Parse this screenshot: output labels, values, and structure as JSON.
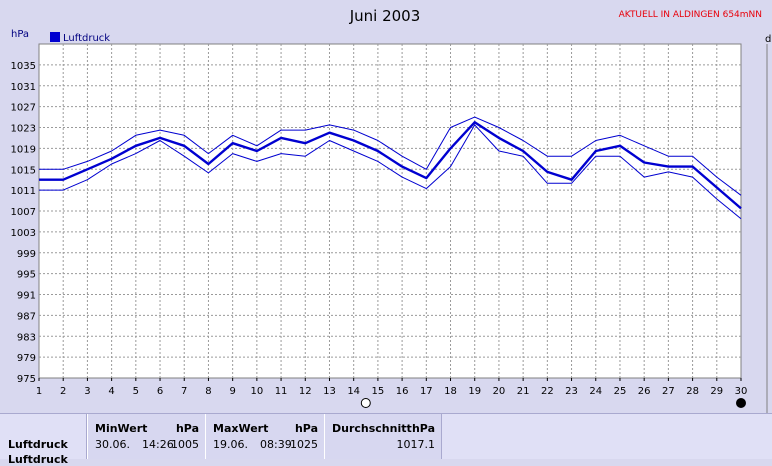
{
  "title": "Juni 2003",
  "notice": "AKTUELL IN ALDINGEN 654mNN",
  "corner_letter": "d",
  "chart_data": {
    "type": "line",
    "title": "Juni 2003",
    "ylabel": "hPa",
    "xlabel": "",
    "ylim": [
      975,
      1039
    ],
    "xlim": [
      1,
      30
    ],
    "yticks": [
      975,
      979,
      983,
      987,
      991,
      995,
      999,
      1003,
      1007,
      1011,
      1015,
      1019,
      1023,
      1027,
      1031,
      1035
    ],
    "x": [
      1,
      2,
      3,
      4,
      5,
      6,
      7,
      8,
      9,
      10,
      11,
      12,
      13,
      14,
      15,
      16,
      17,
      18,
      19,
      20,
      21,
      22,
      23,
      24,
      25,
      26,
      27,
      28,
      29,
      30
    ],
    "grid": true,
    "legend_position": "top-left",
    "series": [
      {
        "name": "Luftdruck",
        "role": "mean",
        "color": "#0000d0",
        "values": [
          1013,
          1013,
          1015,
          1017,
          1019.5,
          1021,
          1019.5,
          1016,
          1020,
          1018.5,
          1021,
          1020,
          1022,
          1020.5,
          1018.5,
          1015.5,
          1013.3,
          1019,
          1024,
          1021,
          1018.5,
          1014.5,
          1013,
          1018.5,
          1019.5,
          1016.3,
          1015.5,
          1015.5,
          1011.5,
          1007.5
        ]
      },
      {
        "name": "",
        "role": "max",
        "color": "#0000d0",
        "values": [
          1015,
          1015,
          1016.5,
          1018.5,
          1021.5,
          1022.5,
          1021.5,
          1018,
          1021.5,
          1019.5,
          1022.5,
          1022.5,
          1023.5,
          1022.5,
          1020.5,
          1017.5,
          1015,
          1023,
          1025,
          1023,
          1020.5,
          1017.5,
          1017.5,
          1020.5,
          1021.5,
          1019.5,
          1017.5,
          1017.5,
          1013.5,
          1010
        ]
      },
      {
        "name": "",
        "role": "min",
        "color": "#0000d0",
        "values": [
          1011,
          1011,
          1013,
          1016,
          1018,
          1020.5,
          1017.5,
          1014.3,
          1018,
          1016.5,
          1018,
          1017.5,
          1020.5,
          1018.5,
          1016.5,
          1013.5,
          1011.3,
          1015.5,
          1023.5,
          1018.5,
          1017.5,
          1012.3,
          1012.3,
          1017.5,
          1017.5,
          1013.5,
          1014.5,
          1013.5,
          1009.3,
          1005.5
        ]
      }
    ],
    "markers": [
      {
        "x": 14.5,
        "symbol": "open-circle"
      },
      {
        "x": 30,
        "symbol": "filled-circle"
      }
    ]
  },
  "stats": {
    "row_label": "Luftdruck",
    "row_label_2": "Luftdruck",
    "min": {
      "head": "MinWert",
      "unit": "hPa",
      "date": "30.06.",
      "time": "14:26",
      "value": "1005"
    },
    "max": {
      "head": "MaxWert",
      "unit": "hPa",
      "date": "19.06.",
      "time": "08:39",
      "value": "1025"
    },
    "avg": {
      "head": "Durchschnitt",
      "unit": "hPa",
      "value": "1017.1"
    }
  },
  "colors": {
    "background": "#d8d8ef",
    "plot_background": "#ffffff",
    "series": "#0000d0",
    "notice": "#e8000a"
  }
}
